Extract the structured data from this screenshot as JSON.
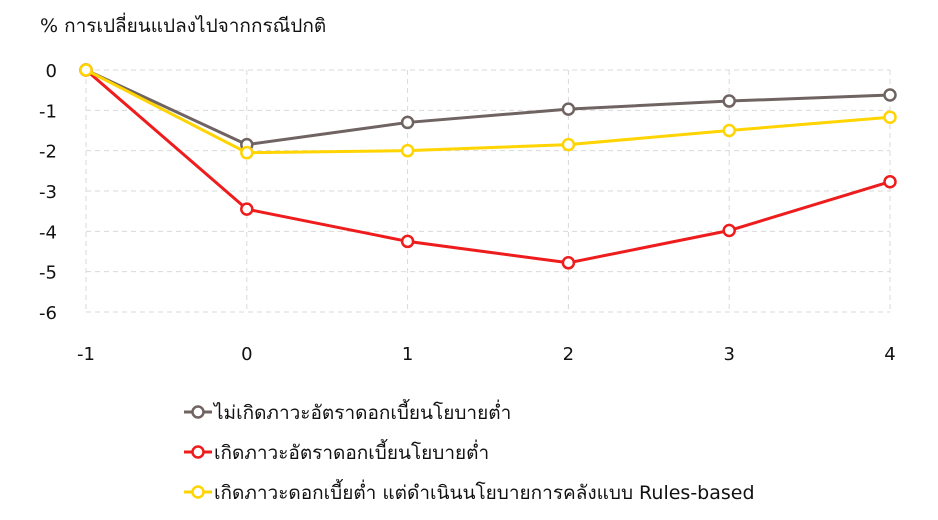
{
  "chart_data": {
    "type": "line",
    "ylabel": "% การเปลี่ยนแปลงไปจากกรณีปกติ",
    "x": [
      -1,
      0,
      1,
      2,
      3,
      4
    ],
    "ylim": [
      -6,
      0
    ],
    "xlim": [
      -1,
      4
    ],
    "yticks": [
      "0",
      "-1",
      "-2",
      "-3",
      "-4",
      "-5",
      "-6"
    ],
    "xticks": [
      "-1",
      "0",
      "1",
      "2",
      "3",
      "4"
    ],
    "grid": true,
    "legend": "bottom",
    "series": [
      {
        "name": "ไม่เกิดภาวะอัตราดอกเบี้ยนโยบายต่ำ",
        "color": "#6f6462",
        "values": [
          0,
          -1.85,
          -1.3,
          -0.97,
          -0.77,
          -0.62
        ]
      },
      {
        "name": "เกิดภาวะอัตราดอกเบี้ยนโยบายต่ำ",
        "color": "#ee1c1c",
        "values": [
          0,
          -3.45,
          -4.25,
          -4.78,
          -3.98,
          -2.77
        ]
      },
      {
        "name": "เกิดภาวะดอกเบี้ยต่ำ แต่ดำเนินนโยบายการคลังแบบ Rules-based",
        "color": "#ffd400",
        "values": [
          0,
          -2.05,
          -2.0,
          -1.85,
          -1.5,
          -1.17
        ]
      }
    ]
  }
}
